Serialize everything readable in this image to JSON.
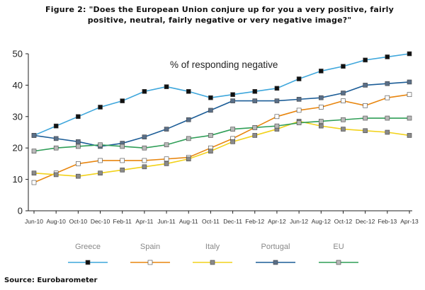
{
  "figure_title": "Figure 2: \"Does the European Union conjure up for you a very positive, fairly positive, neutral, fairly negative or very negative image?\"",
  "source": "Source: Eurobarometer",
  "chart_data": {
    "type": "line",
    "annotation": "% of responding negative",
    "categories": [
      "Jun-10",
      "Aug-10",
      "Oct-10",
      "Dec-10",
      "Feb-11",
      "Apr-11",
      "Jun-11",
      "Aug-11",
      "Oct-11",
      "Dec-11",
      "Feb-12",
      "Apr-12",
      "Jun-12",
      "Aug-12",
      "Oct-12",
      "Dec-12",
      "Feb-13",
      "Apr-13"
    ],
    "ylim": [
      0,
      50
    ],
    "yticks": [
      0,
      10,
      20,
      30,
      40,
      50
    ],
    "grid": false,
    "legend_position": "bottom",
    "series": [
      {
        "name": "Greece",
        "color": "#3fa7dc",
        "marker_fill": "#111111",
        "values": [
          24,
          27,
          30,
          33,
          35,
          38,
          39.5,
          38,
          36,
          37,
          38,
          39,
          42,
          44.5,
          46,
          48,
          49,
          50
        ]
      },
      {
        "name": "Spain",
        "color": "#e8860f",
        "marker_fill": "#ffffff",
        "values": [
          9,
          12,
          15,
          16,
          16,
          16,
          16.5,
          17,
          20,
          23,
          26.5,
          30,
          32,
          33,
          35,
          33.5,
          36,
          37
        ]
      },
      {
        "name": "Italy",
        "color": "#f2d21b",
        "marker_fill": "#8a8a8a",
        "values": [
          12,
          11.5,
          11,
          12,
          13,
          14,
          15,
          16.5,
          19,
          22,
          24,
          26,
          28.5,
          27,
          26,
          25.5,
          25,
          24
        ]
      },
      {
        "name": "Portugal",
        "color": "#1c5d97",
        "marker_fill": "#5a6f88",
        "values": [
          24,
          23,
          22,
          20.5,
          21.5,
          23.5,
          26,
          29,
          32,
          35,
          35,
          35,
          35.5,
          36,
          37.5,
          40,
          40.5,
          41
        ]
      },
      {
        "name": "EU",
        "color": "#2f9e57",
        "marker_fill": "#b9b9b9",
        "values": [
          19,
          20,
          20.5,
          21,
          20.5,
          20,
          21,
          23,
          24,
          26,
          26.5,
          27,
          28,
          28.5,
          29,
          29.5,
          29.5,
          29.5
        ]
      }
    ]
  }
}
